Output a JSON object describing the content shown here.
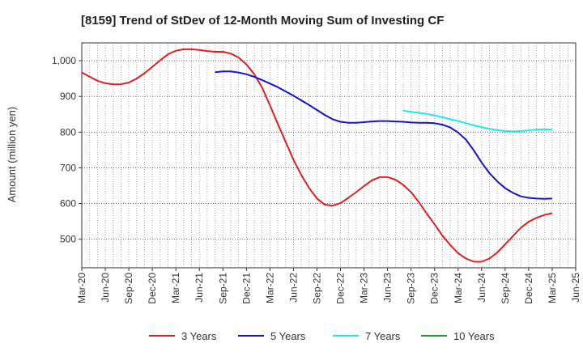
{
  "chart_data": {
    "type": "line",
    "title": "[8159]  Trend of StDev of 12-Month Moving Sum of Investing CF",
    "xlabel": "",
    "ylabel": "Amount (million yen)",
    "ylim": [
      420,
      1050
    ],
    "yticks": [
      500,
      600,
      700,
      800,
      900,
      1000
    ],
    "ytick_labels": [
      "500",
      "600",
      "700",
      "800",
      "900",
      "1,000"
    ],
    "x_start": "2020-03",
    "x_end": "2025-06",
    "xtick_labels": [
      "Mar-20",
      "Jun-20",
      "Sep-20",
      "Dec-20",
      "Mar-21",
      "Jun-21",
      "Sep-21",
      "Dec-21",
      "Mar-22",
      "Jun-22",
      "Sep-22",
      "Dec-22",
      "Mar-23",
      "Jun-23",
      "Sep-23",
      "Dec-23",
      "Mar-24",
      "Jun-24",
      "Sep-24",
      "Dec-24",
      "Mar-25",
      "Jun-25"
    ],
    "grid": true,
    "legend_position": "bottom",
    "series": [
      {
        "name": "3 Years",
        "color": "#e02020",
        "x": [
          "2020-03",
          "2020-04",
          "2020-05",
          "2020-06",
          "2020-07",
          "2020-08",
          "2020-09",
          "2020-10",
          "2020-11",
          "2020-12",
          "2021-01",
          "2021-02",
          "2021-03",
          "2021-04",
          "2021-05",
          "2021-06",
          "2021-07",
          "2021-08",
          "2021-09",
          "2021-10",
          "2021-11",
          "2021-12",
          "2022-01",
          "2022-02",
          "2022-03",
          "2022-04",
          "2022-05",
          "2022-06",
          "2022-07",
          "2022-08",
          "2022-09",
          "2022-10",
          "2022-11",
          "2022-12",
          "2023-01",
          "2023-02",
          "2023-03",
          "2023-04",
          "2023-05",
          "2023-06",
          "2023-07",
          "2023-08",
          "2023-09",
          "2023-10",
          "2023-11",
          "2023-12",
          "2024-01",
          "2024-02",
          "2024-03",
          "2024-04",
          "2024-05",
          "2024-06",
          "2024-07",
          "2024-08",
          "2024-09",
          "2024-10",
          "2024-11",
          "2024-12",
          "2025-01",
          "2025-02",
          "2025-03"
        ],
        "values": [
          967,
          955,
          944,
          937,
          934,
          934,
          939,
          950,
          965,
          983,
          1001,
          1018,
          1028,
          1032,
          1032,
          1030,
          1027,
          1025,
          1025,
          1020,
          1009,
          990,
          962,
          925,
          875,
          823,
          773,
          723,
          680,
          643,
          614,
          597,
          594,
          601,
          616,
          632,
          649,
          665,
          674,
          674,
          667,
          652,
          632,
          604,
          572,
          542,
          510,
          484,
          461,
          446,
          437,
          437,
          446,
          463,
          486,
          509,
          532,
          549,
          560,
          568,
          573
        ]
      },
      {
        "name": "5 Years",
        "color": "#1414d0",
        "x": [
          "2021-08",
          "2021-09",
          "2021-10",
          "2021-11",
          "2021-12",
          "2022-01",
          "2022-02",
          "2022-03",
          "2022-04",
          "2022-05",
          "2022-06",
          "2022-07",
          "2022-08",
          "2022-09",
          "2022-10",
          "2022-11",
          "2022-12",
          "2023-01",
          "2023-02",
          "2023-03",
          "2023-04",
          "2023-05",
          "2023-06",
          "2023-07",
          "2023-08",
          "2023-09",
          "2023-10",
          "2023-11",
          "2023-12",
          "2024-01",
          "2024-02",
          "2024-03",
          "2024-04",
          "2024-05",
          "2024-06",
          "2024-07",
          "2024-08",
          "2024-09",
          "2024-10",
          "2024-11",
          "2024-12",
          "2025-01",
          "2025-02",
          "2025-03"
        ],
        "values": [
          968,
          970,
          970,
          967,
          962,
          955,
          946,
          936,
          926,
          914,
          902,
          889,
          876,
          862,
          848,
          836,
          829,
          826,
          826,
          828,
          830,
          831,
          831,
          830,
          829,
          827,
          826,
          826,
          825,
          821,
          813,
          799,
          779,
          749,
          715,
          685,
          662,
          643,
          630,
          620,
          616,
          614,
          613,
          614
        ]
      },
      {
        "name": "7 Years",
        "color": "#20e8f0",
        "x": [
          "2023-08",
          "2023-09",
          "2023-10",
          "2023-11",
          "2023-12",
          "2024-01",
          "2024-02",
          "2024-03",
          "2024-04",
          "2024-05",
          "2024-06",
          "2024-07",
          "2024-08",
          "2024-09",
          "2024-10",
          "2024-11",
          "2024-12",
          "2025-01",
          "2025-02",
          "2025-03"
        ],
        "values": [
          860,
          857,
          854,
          851,
          847,
          842,
          836,
          831,
          825,
          819,
          814,
          809,
          806,
          803,
          802,
          803,
          805,
          807,
          808,
          807
        ]
      },
      {
        "name": "10 Years",
        "color": "#20a020",
        "x": [],
        "values": []
      }
    ]
  }
}
